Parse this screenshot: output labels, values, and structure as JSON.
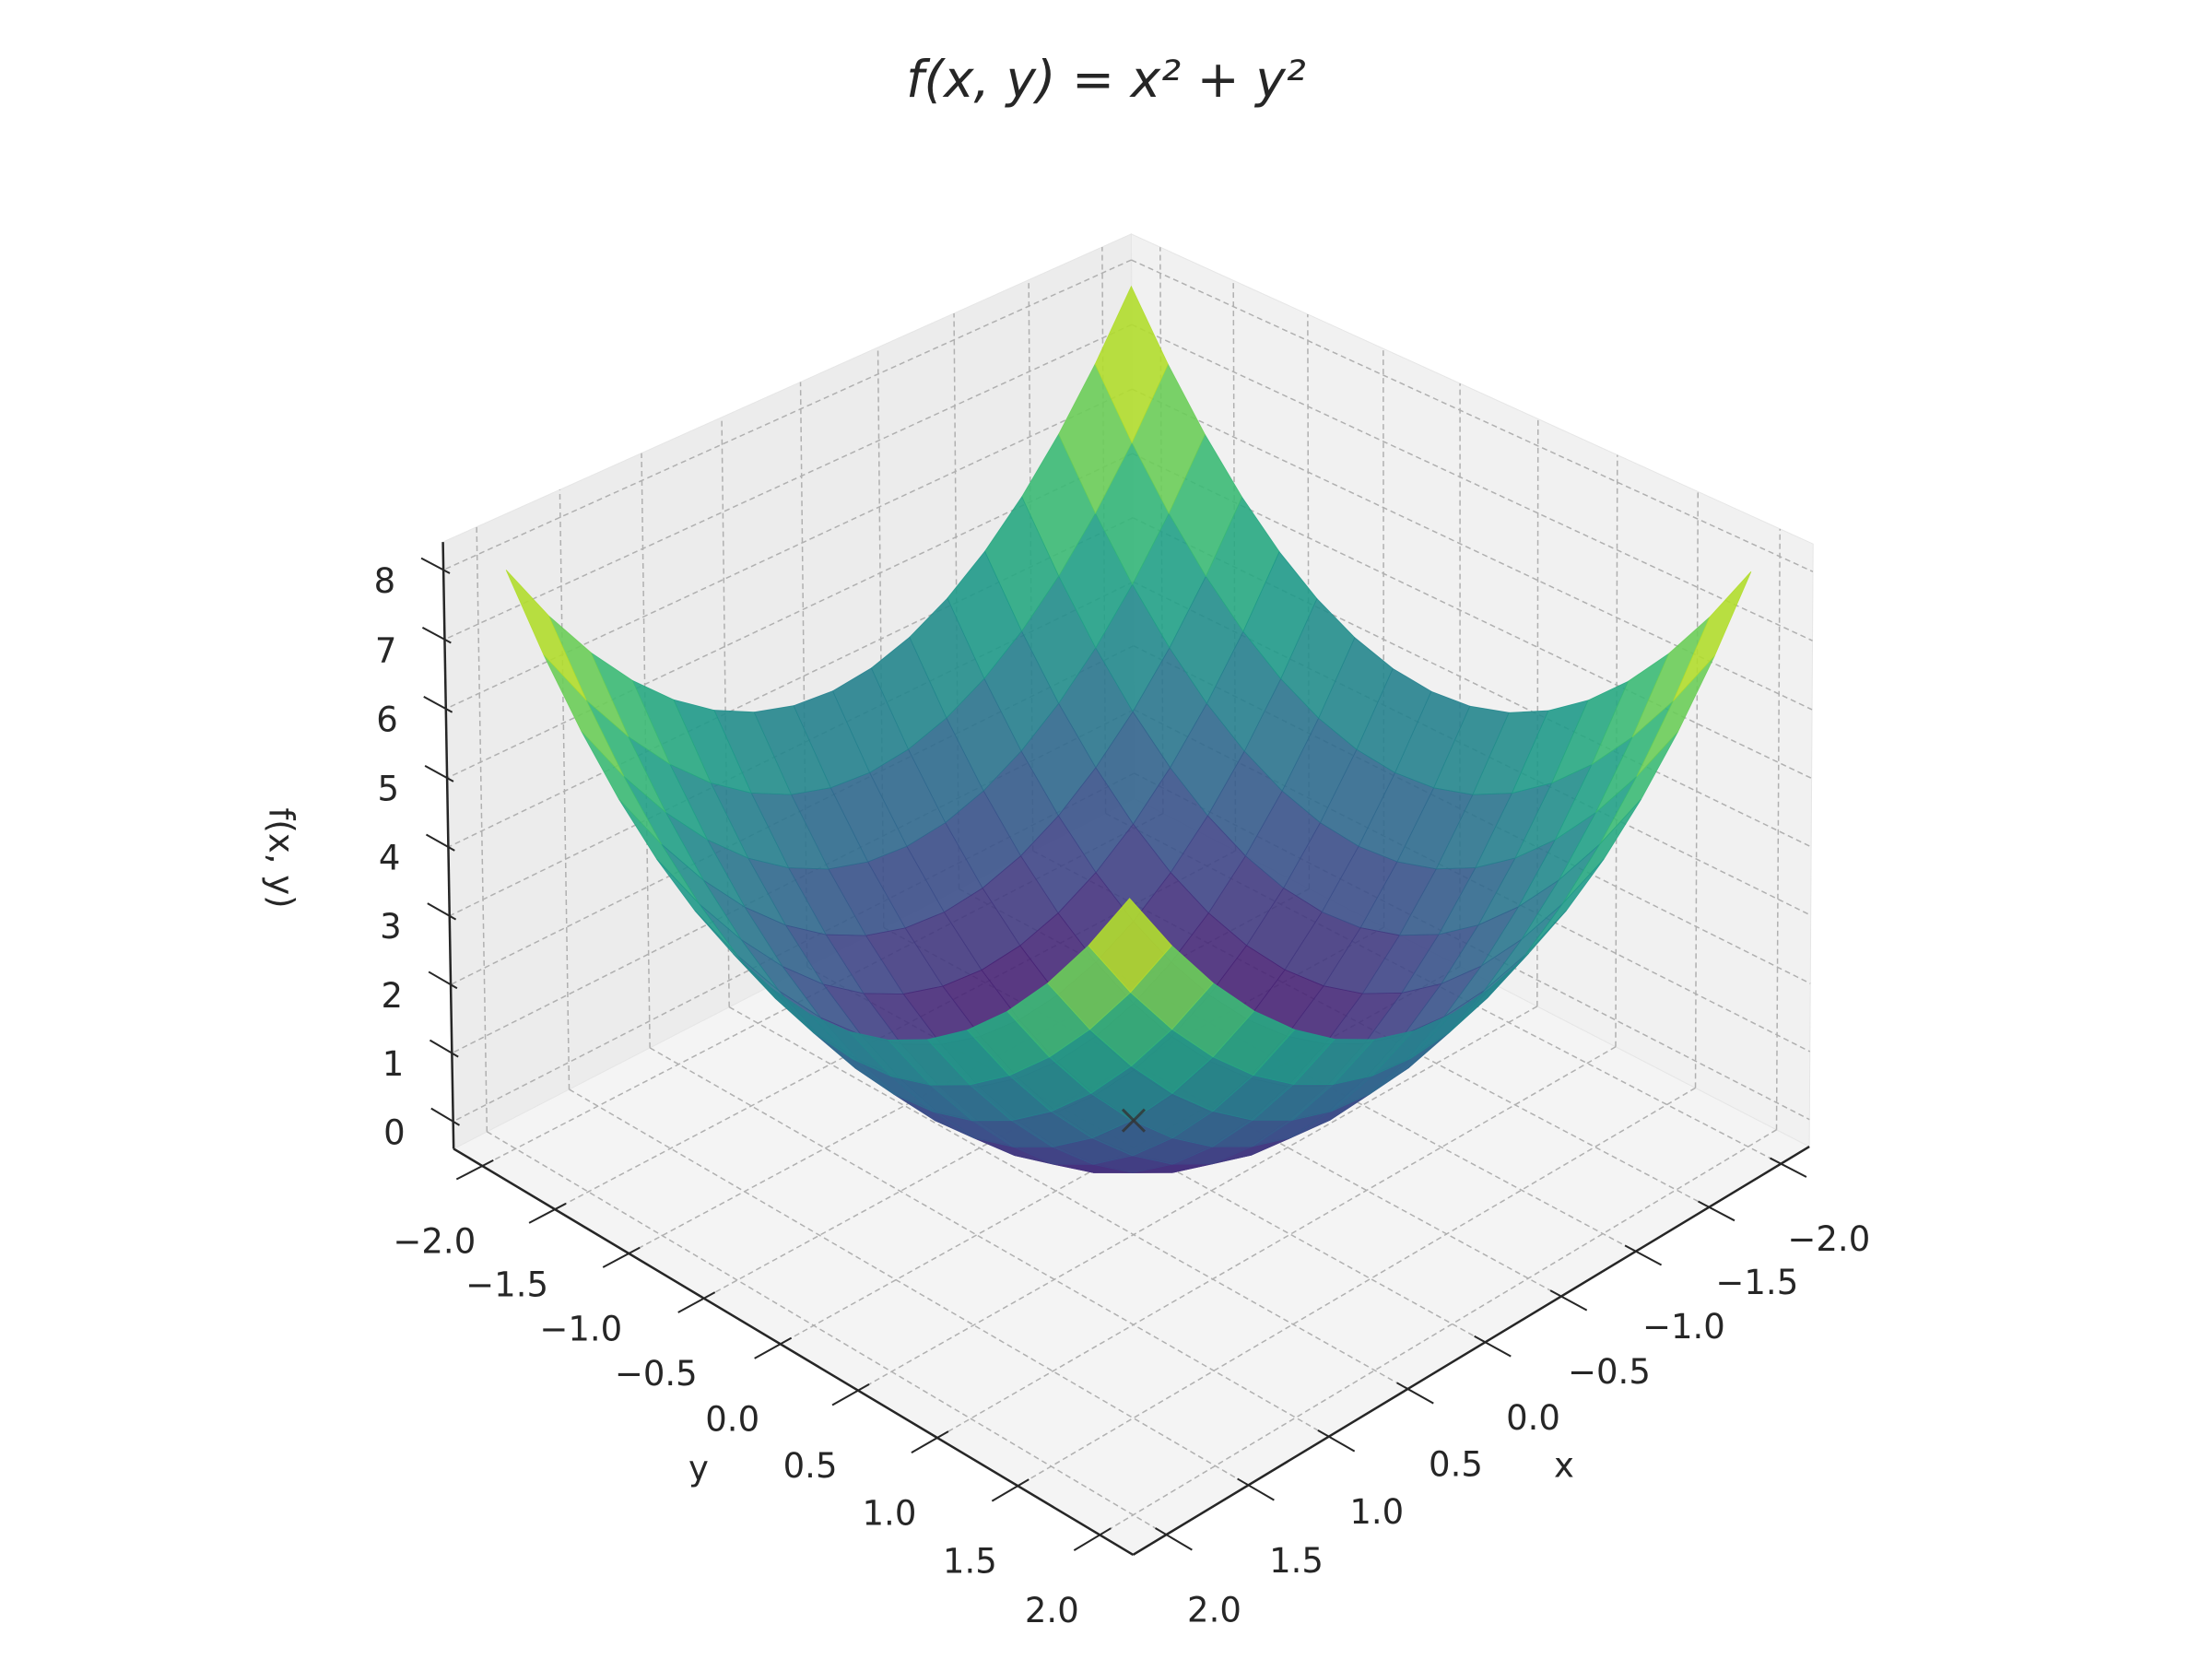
{
  "chart_data": {
    "type": "surface",
    "title": "f(x, y) = x² + y²",
    "xlabel": "x",
    "ylabel": "y",
    "zlabel": "f(x, y)",
    "colormap": "viridis",
    "alpha": 0.9,
    "grid": true,
    "x": [
      -2,
      -1.75,
      -1.5,
      -1.25,
      -1,
      -0.75,
      -0.5,
      -0.25,
      0,
      0.25,
      0.5,
      0.75,
      1,
      1.25,
      1.5,
      1.75,
      2
    ],
    "y": [
      -2,
      -1.75,
      -1.5,
      -1.25,
      -1,
      -0.75,
      -0.5,
      -0.25,
      0,
      0.25,
      0.5,
      0.75,
      1,
      1.25,
      1.5,
      1.75,
      2
    ],
    "z": [
      [
        8,
        7.0625,
        6.25,
        5.5625,
        5,
        4.5625,
        4.25,
        4.0625,
        4,
        4.0625,
        4.25,
        4.5625,
        5,
        5.5625,
        6.25,
        7.0625,
        8
      ],
      [
        7.0625,
        6.125,
        5.3125,
        4.625,
        4.0625,
        3.625,
        3.3125,
        3.125,
        3.0625,
        3.125,
        3.3125,
        3.625,
        4.0625,
        4.625,
        5.3125,
        6.125,
        7.0625
      ],
      [
        6.25,
        5.3125,
        4.5,
        3.8125,
        3.25,
        2.8125,
        2.5,
        2.3125,
        2.25,
        2.3125,
        2.5,
        2.8125,
        3.25,
        3.8125,
        4.5,
        5.3125,
        6.25
      ],
      [
        5.5625,
        4.625,
        3.8125,
        3.125,
        2.5625,
        2.125,
        1.8125,
        1.625,
        1.5625,
        1.625,
        1.8125,
        2.125,
        2.5625,
        3.125,
        3.8125,
        4.625,
        5.5625
      ],
      [
        5,
        4.0625,
        3.25,
        2.5625,
        2,
        1.5625,
        1.25,
        1.0625,
        1,
        1.0625,
        1.25,
        1.5625,
        2,
        2.5625,
        3.25,
        4.0625,
        5
      ],
      [
        4.5625,
        3.625,
        2.8125,
        2.125,
        1.5625,
        1.125,
        0.8125,
        0.625,
        0.5625,
        0.625,
        0.8125,
        1.125,
        1.5625,
        2.125,
        2.8125,
        3.625,
        4.5625
      ],
      [
        4.25,
        3.3125,
        2.5,
        1.8125,
        1.25,
        0.8125,
        0.5,
        0.3125,
        0.25,
        0.3125,
        0.5,
        0.8125,
        1.25,
        1.8125,
        2.5,
        3.3125,
        4.25
      ],
      [
        4.0625,
        3.125,
        2.3125,
        1.625,
        1.0625,
        0.625,
        0.3125,
        0.125,
        0.0625,
        0.125,
        0.3125,
        0.625,
        1.0625,
        1.625,
        2.3125,
        3.125,
        4.0625
      ],
      [
        4,
        3.0625,
        2.25,
        1.5625,
        1,
        0.5625,
        0.25,
        0.0625,
        0,
        0.0625,
        0.25,
        0.5625,
        1,
        1.5625,
        2.25,
        3.0625,
        4
      ],
      [
        4.0625,
        3.125,
        2.3125,
        1.625,
        1.0625,
        0.625,
        0.3125,
        0.125,
        0.0625,
        0.125,
        0.3125,
        0.625,
        1.0625,
        1.625,
        2.3125,
        3.125,
        4.0625
      ],
      [
        4.25,
        3.3125,
        2.5,
        1.8125,
        1.25,
        0.8125,
        0.5,
        0.3125,
        0.25,
        0.3125,
        0.5,
        0.8125,
        1.25,
        1.8125,
        2.5,
        3.3125,
        4.25
      ],
      [
        4.5625,
        3.625,
        2.8125,
        2.125,
        1.5625,
        1.125,
        0.8125,
        0.625,
        0.5625,
        0.625,
        0.8125,
        1.125,
        1.5625,
        2.125,
        2.8125,
        3.625,
        4.5625
      ],
      [
        5,
        4.0625,
        3.25,
        2.5625,
        2,
        1.5625,
        1.25,
        1.0625,
        1,
        1.0625,
        1.25,
        1.5625,
        2,
        2.5625,
        3.25,
        4.0625,
        5
      ],
      [
        5.5625,
        4.625,
        3.8125,
        3.125,
        2.5625,
        2.125,
        1.8125,
        1.625,
        1.5625,
        1.625,
        1.8125,
        2.125,
        2.5625,
        3.125,
        3.8125,
        4.625,
        5.5625
      ],
      [
        6.25,
        5.3125,
        4.5,
        3.8125,
        3.25,
        2.8125,
        2.5,
        2.3125,
        2.25,
        2.3125,
        2.5,
        2.8125,
        3.25,
        3.8125,
        4.5,
        5.3125,
        6.25
      ],
      [
        7.0625,
        6.125,
        5.3125,
        4.625,
        4.0625,
        3.625,
        3.3125,
        3.125,
        3.0625,
        3.125,
        3.3125,
        3.625,
        4.0625,
        4.625,
        5.3125,
        6.125,
        7.0625
      ],
      [
        8,
        7.0625,
        6.25,
        5.5625,
        5,
        4.5625,
        4.25,
        4.0625,
        4,
        4.0625,
        4.25,
        4.5625,
        5,
        5.5625,
        6.25,
        7.0625,
        8
      ]
    ],
    "marker_point": {
      "x": 0,
      "y": 0,
      "z": 0
    },
    "xlim": [
      -2.2,
      2.2
    ],
    "ylim": [
      -2.2,
      2.2
    ],
    "zlim": [
      -0.4,
      8.4
    ],
    "xticks": [
      {
        "value": -2,
        "label": "−2.0"
      },
      {
        "value": -1.5,
        "label": "−1.5"
      },
      {
        "value": -1,
        "label": "−1.0"
      },
      {
        "value": -0.5,
        "label": "−0.5"
      },
      {
        "value": 0,
        "label": "0.0"
      },
      0.5,
      {
        "value": 1,
        "label": "1.0"
      },
      1.5,
      {
        "value": 2,
        "label": "2.0"
      }
    ],
    "yticks": [
      {
        "value": -2,
        "label": "−2.0"
      },
      {
        "value": -1.5,
        "label": "−1.5"
      },
      {
        "value": -1,
        "label": "−1.0"
      },
      {
        "value": -0.5,
        "label": "−0.5"
      },
      {
        "value": 0,
        "label": "0.0"
      },
      0.5,
      {
        "value": 1,
        "label": "1.0"
      },
      1.5,
      {
        "value": 2,
        "label": "2.0"
      }
    ],
    "zticks": [
      0,
      1,
      2,
      3,
      4,
      5,
      6,
      7,
      8
    ]
  }
}
